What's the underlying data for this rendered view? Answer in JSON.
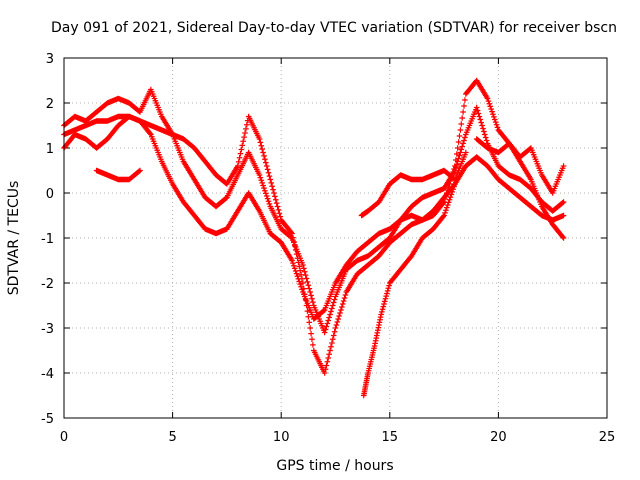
{
  "chart_data": {
    "type": "scatter",
    "title": "Day 091 of 2021, Sidereal Day-to-day VTEC variation (SDTVAR) for receiver bscn",
    "xlabel": "GPS time / hours",
    "ylabel": "SDTVAR / TECUs",
    "xlim": [
      0,
      25
    ],
    "ylim": [
      -5,
      3
    ],
    "xticks": [
      "0",
      "5",
      "10",
      "15",
      "20",
      "25"
    ],
    "yticks": [
      "-5",
      "-4",
      "-3",
      "-2",
      "-1",
      "0",
      "1",
      "2",
      "3"
    ],
    "grid": true,
    "legend": "none",
    "marker": "+",
    "color": "#ff0000",
    "series": [
      {
        "x": [
          0.0,
          0.5,
          1.0,
          1.5,
          2.0,
          2.5,
          3.0,
          3.5,
          4.0,
          4.5,
          5.0,
          5.5,
          6.0,
          6.5,
          7.0,
          7.5,
          8.0,
          8.5,
          9.0,
          9.5,
          10.0,
          10.5,
          11.0,
          11.5,
          12.0,
          12.5,
          13.0,
          13.5,
          14.0,
          14.5,
          15.0,
          15.5,
          16.0,
          16.5,
          17.0,
          17.5,
          18.0,
          18.5,
          19.0,
          19.5,
          20.0,
          20.5,
          21.0,
          21.5,
          22.0,
          22.5,
          23.0
        ],
        "y": [
          1.0,
          1.3,
          1.2,
          1.0,
          1.2,
          1.5,
          1.7,
          1.6,
          1.3,
          0.7,
          0.2,
          -0.2,
          -0.5,
          -0.8,
          -0.9,
          -0.8,
          -0.4,
          0.0,
          -0.4,
          -0.9,
          -1.1,
          -1.5,
          -2.2,
          -2.8,
          -2.6,
          -2.0,
          -1.6,
          -1.3,
          -1.1,
          -0.9,
          -0.8,
          -0.6,
          -0.5,
          -0.6,
          -0.4,
          -0.1,
          0.2,
          0.6,
          0.8,
          0.6,
          0.3,
          0.1,
          -0.1,
          -0.3,
          -0.5,
          -0.6,
          -0.5
        ]
      },
      {
        "x": [
          0.0,
          0.5,
          1.0,
          1.5,
          2.0,
          2.5,
          3.0,
          3.5,
          4.0,
          4.5,
          5.0,
          5.5,
          6.0,
          6.5,
          7.0,
          7.5,
          8.0,
          8.5,
          9.0,
          9.5,
          10.0,
          10.5,
          11.0,
          11.5,
          12.0,
          12.5,
          13.0,
          13.5,
          14.0,
          14.5,
          15.0,
          15.5,
          16.0,
          16.5,
          17.0,
          17.5,
          18.0,
          18.5,
          19.0,
          19.5,
          20.0,
          20.5,
          21.0,
          21.5,
          22.0,
          22.5,
          23.0
        ],
        "y": [
          1.5,
          1.7,
          1.6,
          1.8,
          2.0,
          2.1,
          2.0,
          1.8,
          2.3,
          1.7,
          1.3,
          0.7,
          0.3,
          -0.1,
          -0.3,
          -0.1,
          0.4,
          0.9,
          0.4,
          -0.3,
          -0.8,
          -1.0,
          -1.6,
          -2.5,
          -3.1,
          -2.3,
          -1.7,
          -1.5,
          -1.4,
          -1.2,
          -1.0,
          -0.6,
          -0.3,
          -0.1,
          0.0,
          0.1,
          0.5,
          1.3,
          1.9,
          1.1,
          0.6,
          0.4,
          0.3,
          0.1,
          -0.2,
          -0.4,
          -0.2
        ]
      },
      {
        "x": [
          0.0,
          0.5,
          1.0,
          1.5,
          2.0,
          2.5,
          3.0,
          3.5,
          4.0,
          4.5,
          5.0,
          5.5,
          6.0,
          6.5,
          7.0,
          7.5,
          8.0,
          8.5,
          9.0,
          9.5,
          10.0,
          10.5,
          11.0,
          11.5,
          12.0,
          12.5,
          13.0,
          13.5,
          14.0,
          14.5,
          15.0,
          15.5,
          16.0,
          16.5,
          17.0,
          17.5,
          18.0,
          18.5,
          19.0,
          19.5,
          20.0,
          20.5,
          21.0,
          21.5,
          22.0,
          22.5,
          23.0
        ],
        "y": [
          1.3,
          1.4,
          1.5,
          1.6,
          1.6,
          1.7,
          1.7,
          1.6,
          1.5,
          1.4,
          1.3,
          1.2,
          1.0,
          0.7,
          0.4,
          0.2,
          0.6,
          1.7,
          1.2,
          0.3,
          -0.6,
          -0.9,
          -2.0,
          -3.5,
          -4.0,
          -3.0,
          -2.2,
          -1.8,
          -1.6,
          -1.4,
          -1.1,
          -0.9,
          -0.7,
          -0.6,
          -0.5,
          -0.2,
          0.6,
          2.2,
          2.5,
          2.1,
          1.4,
          1.1,
          0.7,
          0.3,
          -0.3,
          -0.7,
          -1.0
        ]
      },
      {
        "x": [
          1.5,
          2.0,
          2.5,
          3.0,
          3.5
        ],
        "y": [
          0.5,
          0.4,
          0.3,
          0.3,
          0.5
        ]
      },
      {
        "x": [
          13.8,
          14.0,
          14.3,
          14.6,
          15.0,
          15.5,
          16.0,
          16.5,
          17.0,
          17.5,
          18.0
        ],
        "y": [
          -4.5,
          -4.0,
          -3.4,
          -2.7,
          -2.0,
          -1.7,
          -1.4,
          -1.0,
          -0.8,
          -0.5,
          0.2
        ]
      },
      {
        "x": [
          13.7,
          14.0,
          14.5,
          15.0,
          15.5,
          16.0,
          16.5,
          17.0,
          17.5,
          18.0,
          18.5
        ],
        "y": [
          -0.5,
          -0.4,
          -0.2,
          0.2,
          0.4,
          0.3,
          0.3,
          0.4,
          0.5,
          0.3,
          0.9
        ]
      },
      {
        "x": [
          19.0,
          19.5,
          20.0,
          20.5,
          21.0,
          21.5,
          22.0,
          22.5,
          23.0
        ],
        "y": [
          1.2,
          1.0,
          0.9,
          1.1,
          0.8,
          1.0,
          0.4,
          0.0,
          0.6
        ]
      }
    ]
  }
}
